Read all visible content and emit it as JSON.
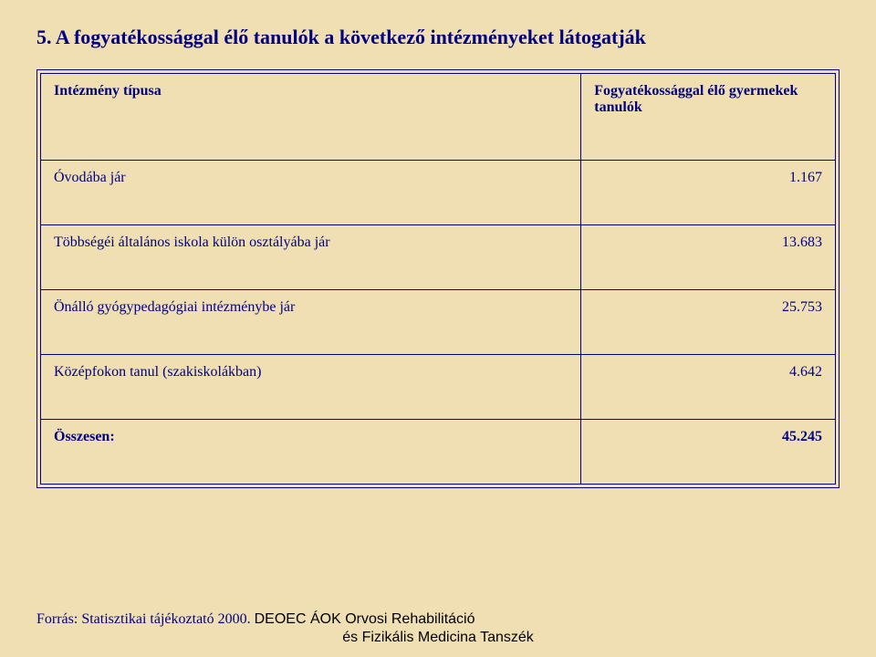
{
  "title": "5. A fogyatékossággal élő tanulók a következő intézményeket látogatják",
  "header": {
    "col1": "Intézmény típusa",
    "col2": "Fogyatékossággal élő gyermekek tanulók"
  },
  "rows": [
    {
      "label": "Óvodába jár",
      "value": "1.167"
    },
    {
      "label": "Többségéi általános iskola külön osztályába jár",
      "value": "13.683"
    },
    {
      "label": "Önálló gyógypedagógiai intézménybe jár",
      "value": "25.753"
    },
    {
      "label": "Középfokon tanul (szakiskolákban)",
      "value": "4.642"
    }
  ],
  "total": {
    "label": "Összesen:",
    "value": "45.245"
  },
  "footer": {
    "source": "Forrás: Statisztikai tájékoztató 2000.",
    "dept_line1": "DEOEC ÁOK Orvosi Rehabilitáció",
    "dept_line2": "és Fizikális Medicina Tanszék"
  }
}
